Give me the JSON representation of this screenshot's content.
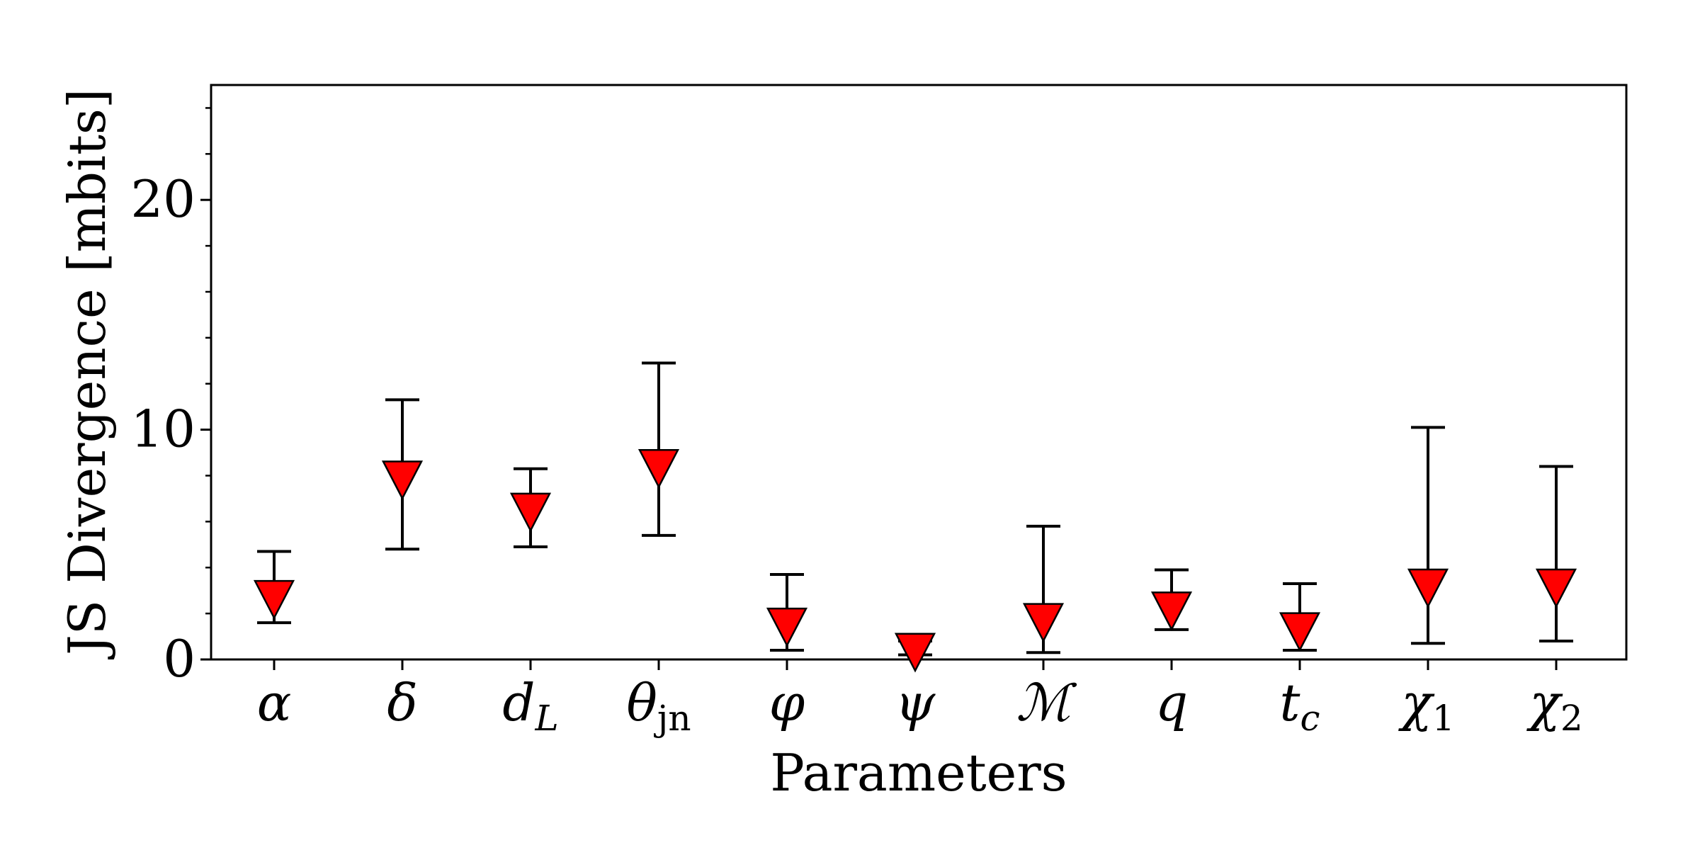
{
  "chart_data": {
    "type": "scatter",
    "xlabel": "Parameters",
    "ylabel": "JS Divergence [mbits]",
    "ylim": [
      0,
      25
    ],
    "yticks": [
      0,
      10,
      20
    ],
    "y_minor_step": 2,
    "grid": false,
    "legend": "none",
    "marker": "triangle-down",
    "marker_color": "#ff0000",
    "marker_edge_color": "#000000",
    "errorbar_color": "#000000",
    "categories": [
      {
        "main": "α",
        "sub": ""
      },
      {
        "main": "δ",
        "sub": ""
      },
      {
        "main": "d",
        "sub": "L"
      },
      {
        "main": "θ",
        "sub": "jn"
      },
      {
        "main": "φ",
        "sub": ""
      },
      {
        "main": "ψ",
        "sub": ""
      },
      {
        "main": "ℳ",
        "sub": ""
      },
      {
        "main": "q",
        "sub": ""
      },
      {
        "main": "t",
        "sub": "c"
      },
      {
        "main": "χ",
        "sub": "1"
      },
      {
        "main": "χ",
        "sub": "2"
      }
    ],
    "values": [
      2.8,
      8.0,
      6.6,
      8.5,
      1.6,
      0.5,
      1.8,
      2.3,
      1.4,
      3.3,
      3.3
    ],
    "err_low": [
      1.6,
      4.8,
      4.9,
      5.4,
      0.4,
      0.2,
      0.3,
      1.3,
      0.4,
      0.7,
      0.8
    ],
    "err_high": [
      4.7,
      11.3,
      8.3,
      12.9,
      3.7,
      0.8,
      5.8,
      3.9,
      3.3,
      10.1,
      8.4
    ]
  }
}
